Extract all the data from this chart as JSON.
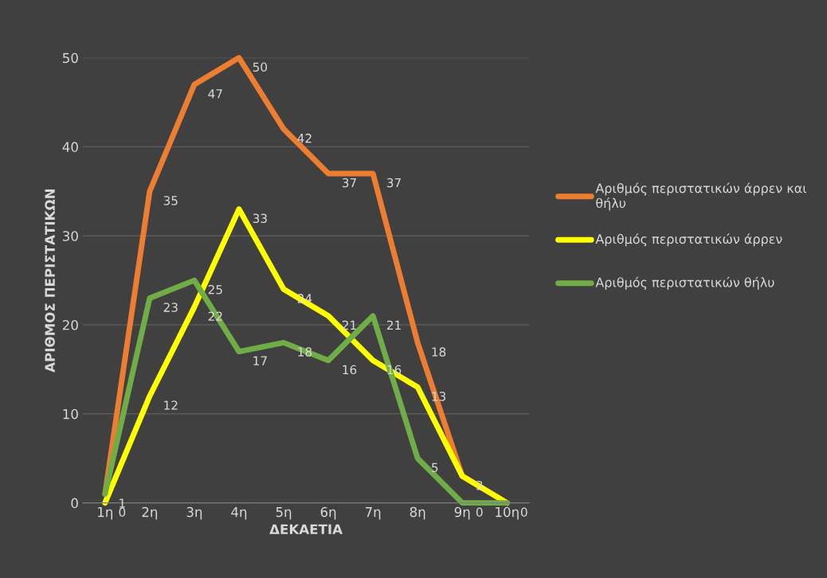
{
  "chart_data": {
    "type": "line",
    "xlabel": "ΔΕΚΑΕΤΙΑ",
    "ylabel": "ΑΡΙΘΜΟΣ ΠΕΡΙΣΤΑΤΙΚΩΝ",
    "categories": [
      "1η",
      "2η",
      "3η",
      "4η",
      "5η",
      "6η",
      "7η",
      "8η",
      "9η",
      "10η"
    ],
    "series": [
      {
        "name": "Αριθμός περιστατικών άρρεν και θήλυ",
        "color": "#ed7d31",
        "values": [
          1,
          35,
          47,
          50,
          42,
          37,
          37,
          18,
          3,
          0
        ],
        "value_labels": [
          "1",
          "35",
          "47",
          "50",
          "42",
          "37",
          "37",
          "18",
          "3",
          "0"
        ]
      },
      {
        "name": "Αριθμός περιστατικών άρρεν",
        "color": "#ffff00",
        "values": [
          0,
          12,
          22,
          33,
          24,
          21,
          16,
          13,
          3,
          0
        ],
        "value_labels": [
          "0",
          "12",
          "22",
          "33",
          "24",
          "21",
          "16",
          "13",
          null,
          null
        ]
      },
      {
        "name": "Αριθμός περιστατικών θήλυ",
        "color": "#70ad47",
        "values": [
          1,
          23,
          25,
          17,
          18,
          16,
          21,
          5,
          0,
          0
        ],
        "value_labels": [
          null,
          "23",
          "25",
          "17",
          "18",
          "16",
          "21",
          "5",
          "0",
          null
        ]
      }
    ],
    "ylim": [
      0,
      50
    ],
    "yticks": [
      0,
      10,
      20,
      30,
      40,
      50
    ],
    "grid": "y",
    "legend": "right",
    "marker": "none",
    "line_style": "solid"
  }
}
